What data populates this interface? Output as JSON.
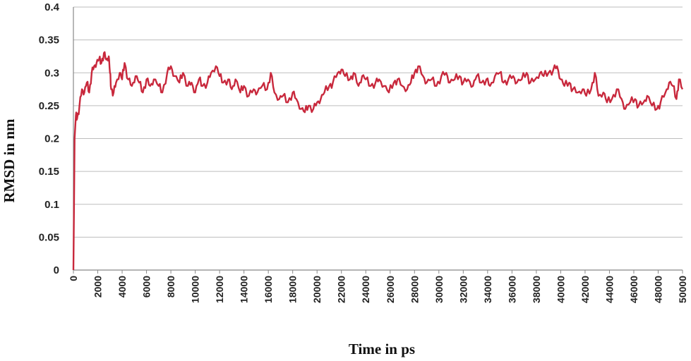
{
  "chart_data": {
    "type": "line",
    "title": "",
    "xlabel": "Time in ps",
    "ylabel": "RMSD in nm",
    "xlim": [
      0,
      50000
    ],
    "ylim": [
      0,
      0.4
    ],
    "x_ticks": [
      0,
      2000,
      4000,
      6000,
      8000,
      10000,
      12000,
      14000,
      16000,
      18000,
      20000,
      22000,
      24000,
      26000,
      28000,
      30000,
      32000,
      34000,
      36000,
      38000,
      40000,
      42000,
      44000,
      46000,
      48000,
      50000
    ],
    "y_ticks": [
      "0",
      "0.05",
      "0.1",
      "0.15",
      "0.2",
      "0.25",
      "0.3",
      "0.35",
      "0.4"
    ],
    "grid": "horizontal",
    "legend": "none",
    "series": [
      {
        "color": "#c8283c",
        "points": [
          [
            0,
            0
          ],
          [
            50,
            0.1
          ],
          [
            100,
            0.2
          ],
          [
            200,
            0.235
          ],
          [
            300,
            0.23
          ],
          [
            500,
            0.25
          ],
          [
            700,
            0.275
          ],
          [
            900,
            0.27
          ],
          [
            1100,
            0.285
          ],
          [
            1300,
            0.27
          ],
          [
            1500,
            0.3
          ],
          [
            1700,
            0.31
          ],
          [
            1900,
            0.315
          ],
          [
            2100,
            0.32
          ],
          [
            2300,
            0.315
          ],
          [
            2500,
            0.33
          ],
          [
            2700,
            0.32
          ],
          [
            2900,
            0.325
          ],
          [
            3000,
            0.3
          ],
          [
            3100,
            0.275
          ],
          [
            3300,
            0.27
          ],
          [
            3500,
            0.285
          ],
          [
            3800,
            0.3
          ],
          [
            4000,
            0.29
          ],
          [
            4200,
            0.315
          ],
          [
            4500,
            0.29
          ],
          [
            4800,
            0.28
          ],
          [
            5100,
            0.295
          ],
          [
            5400,
            0.285
          ],
          [
            5700,
            0.27
          ],
          [
            6000,
            0.29
          ],
          [
            6300,
            0.28
          ],
          [
            6600,
            0.29
          ],
          [
            7000,
            0.28
          ],
          [
            7300,
            0.27
          ],
          [
            7700,
            0.3
          ],
          [
            8000,
            0.31
          ],
          [
            8300,
            0.295
          ],
          [
            8700,
            0.285
          ],
          [
            9000,
            0.3
          ],
          [
            9400,
            0.28
          ],
          [
            9700,
            0.285
          ],
          [
            10000,
            0.27
          ],
          [
            10300,
            0.29
          ],
          [
            10600,
            0.28
          ],
          [
            11000,
            0.285
          ],
          [
            11300,
            0.3
          ],
          [
            11700,
            0.31
          ],
          [
            12000,
            0.295
          ],
          [
            12300,
            0.285
          ],
          [
            12700,
            0.29
          ],
          [
            13000,
            0.275
          ],
          [
            13300,
            0.29
          ],
          [
            13700,
            0.27
          ],
          [
            14000,
            0.28
          ],
          [
            14400,
            0.265
          ],
          [
            14800,
            0.275
          ],
          [
            15100,
            0.27
          ],
          [
            15500,
            0.28
          ],
          [
            15900,
            0.275
          ],
          [
            16200,
            0.3
          ],
          [
            16500,
            0.27
          ],
          [
            16900,
            0.26
          ],
          [
            17200,
            0.265
          ],
          [
            17600,
            0.255
          ],
          [
            18000,
            0.27
          ],
          [
            18300,
            0.26
          ],
          [
            18700,
            0.245
          ],
          [
            19000,
            0.24
          ],
          [
            19300,
            0.25
          ],
          [
            19700,
            0.245
          ],
          [
            20000,
            0.255
          ],
          [
            20300,
            0.26
          ],
          [
            20600,
            0.27
          ],
          [
            21000,
            0.28
          ],
          [
            21300,
            0.285
          ],
          [
            21700,
            0.3
          ],
          [
            22000,
            0.305
          ],
          [
            22300,
            0.295
          ],
          [
            22700,
            0.29
          ],
          [
            23000,
            0.3
          ],
          [
            23400,
            0.28
          ],
          [
            23700,
            0.295
          ],
          [
            24000,
            0.29
          ],
          [
            24400,
            0.28
          ],
          [
            24800,
            0.285
          ],
          [
            25100,
            0.29
          ],
          [
            25500,
            0.28
          ],
          [
            25900,
            0.27
          ],
          [
            26300,
            0.285
          ],
          [
            26600,
            0.29
          ],
          [
            27000,
            0.28
          ],
          [
            27400,
            0.275
          ],
          [
            27700,
            0.285
          ],
          [
            28000,
            0.3
          ],
          [
            28300,
            0.31
          ],
          [
            28700,
            0.295
          ],
          [
            29000,
            0.285
          ],
          [
            29400,
            0.29
          ],
          [
            29800,
            0.28
          ],
          [
            30200,
            0.295
          ],
          [
            30600,
            0.3
          ],
          [
            30900,
            0.285
          ],
          [
            31300,
            0.29
          ],
          [
            31700,
            0.295
          ],
          [
            32000,
            0.285
          ],
          [
            32400,
            0.29
          ],
          [
            32800,
            0.28
          ],
          [
            33100,
            0.295
          ],
          [
            33500,
            0.285
          ],
          [
            33900,
            0.29
          ],
          [
            34200,
            0.28
          ],
          [
            34600,
            0.295
          ],
          [
            35000,
            0.3
          ],
          [
            35300,
            0.285
          ],
          [
            35700,
            0.29
          ],
          [
            36100,
            0.295
          ],
          [
            36400,
            0.285
          ],
          [
            36800,
            0.29
          ],
          [
            37200,
            0.3
          ],
          [
            37500,
            0.285
          ],
          [
            37900,
            0.29
          ],
          [
            38300,
            0.3
          ],
          [
            38600,
            0.295
          ],
          [
            39000,
            0.3
          ],
          [
            39400,
            0.305
          ],
          [
            39700,
            0.31
          ],
          [
            40000,
            0.29
          ],
          [
            40300,
            0.28
          ],
          [
            40700,
            0.285
          ],
          [
            41000,
            0.275
          ],
          [
            41400,
            0.27
          ],
          [
            41800,
            0.275
          ],
          [
            42100,
            0.265
          ],
          [
            42500,
            0.275
          ],
          [
            42800,
            0.3
          ],
          [
            43100,
            0.265
          ],
          [
            43500,
            0.27
          ],
          [
            43800,
            0.255
          ],
          [
            44200,
            0.26
          ],
          [
            44600,
            0.275
          ],
          [
            45000,
            0.26
          ],
          [
            45300,
            0.245
          ],
          [
            45700,
            0.255
          ],
          [
            46100,
            0.26
          ],
          [
            46400,
            0.25
          ],
          [
            46800,
            0.255
          ],
          [
            47100,
            0.265
          ],
          [
            47500,
            0.25
          ],
          [
            47900,
            0.245
          ],
          [
            48200,
            0.255
          ],
          [
            48600,
            0.27
          ],
          [
            48900,
            0.285
          ],
          [
            49200,
            0.28
          ],
          [
            49500,
            0.26
          ],
          [
            49700,
            0.29
          ],
          [
            50000,
            0.275
          ]
        ]
      }
    ]
  }
}
